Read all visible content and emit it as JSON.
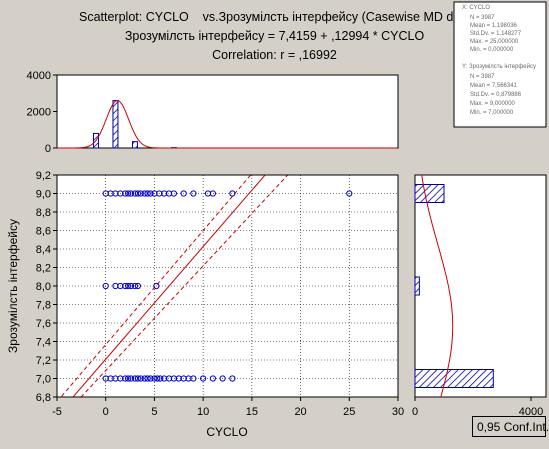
{
  "titles": {
    "line1": "Scatterplot: CYCLO    vs.Зрозумілсть інтерфейсу (Casewise MD dele",
    "line2": "Зрозумілсть інтерфейсу = 7,4159 + ,12994 * CYCLO",
    "line3": "Correlation: r = ,16992"
  },
  "footer": {
    "conf_label": "0,95 Conf.Int."
  },
  "stats": {
    "cyclo": {
      "name": "X: CYCLO",
      "lines": [
        "N = 3987",
        "Mean = 1,198036",
        "Std.Dv. = 1,148277",
        "Max. = 25,000000",
        "Min. = 0,000000"
      ]
    },
    "ui": {
      "name": "Y: Зрозумілсть інтерфейсу",
      "lines": [
        "N = 3987",
        "Mean = 7,566341",
        "Std.Dv. = 0,879886",
        "Max. = 9,000000",
        "Min. = 7,000000"
      ]
    }
  },
  "colors": {
    "points": "#0000cc",
    "fit": "#cc0000",
    "hatch": "#0000aa",
    "background": "#d4d0c8"
  },
  "chart_data": [
    {
      "type": "scatter",
      "xlabel": "CYCLO",
      "ylabel": "Зрозумілсть інтерфейсу",
      "xlim": [
        -5,
        30
      ],
      "ylim": [
        6.8,
        9.2
      ],
      "xticks": [
        -5,
        0,
        5,
        10,
        15,
        20,
        25,
        30
      ],
      "xtick_labels": [
        "-5",
        "0",
        "5",
        "10",
        "15",
        "20",
        "25",
        "30"
      ],
      "yticks": [
        6.8,
        7.0,
        7.2,
        7.4,
        7.6,
        7.8,
        8.0,
        8.2,
        8.4,
        8.6,
        8.8,
        9.0,
        9.2
      ],
      "ytick_labels": [
        "6,8",
        "7,0",
        "7,2",
        "7,4",
        "7,6",
        "7,8",
        "8,0",
        "8,2",
        "8,4",
        "8,6",
        "8,8",
        "9,0",
        "9,2"
      ],
      "grid": true,
      "regression": {
        "intercept": 7.4159,
        "slope": 0.12994,
        "r": 0.16992
      },
      "confidence_level": 0.95,
      "series": [
        {
          "y": 9.0,
          "x": [
            0,
            0.5,
            1,
            1.5,
            2,
            2.3,
            2.6,
            3,
            3.3,
            3.6,
            4,
            4.3,
            4.6,
            5,
            5.5,
            6,
            6.5,
            7,
            8,
            9,
            10.5,
            11,
            13,
            25
          ]
        },
        {
          "y": 8.0,
          "x": [
            0,
            1,
            1.5,
            2,
            2.3,
            2.6,
            3,
            3.3,
            5.2
          ]
        },
        {
          "y": 7.0,
          "x": [
            0,
            0.5,
            1,
            1.5,
            2,
            2.3,
            2.6,
            3,
            3.3,
            3.6,
            4,
            4.3,
            4.6,
            5,
            5.3,
            5.6,
            6,
            6.5,
            7,
            7.5,
            8,
            8.5,
            9,
            10,
            11,
            12,
            13
          ]
        }
      ]
    },
    {
      "type": "bar",
      "name": "CYCLO histogram",
      "xlim": [
        -5,
        30
      ],
      "ylim": [
        0,
        4000
      ],
      "yticks": [
        0,
        2000,
        4000
      ],
      "ytick_labels": [
        "0",
        "2000",
        "4000"
      ],
      "bars": [
        {
          "x": -1,
          "value": 800
        },
        {
          "x": 1,
          "value": 2600
        },
        {
          "x": 3,
          "value": 350
        },
        {
          "x": 7,
          "value": 20
        }
      ],
      "normal_curve": {
        "mean": 1.198036,
        "sd": 1.148277,
        "peak": 2600
      }
    },
    {
      "type": "bar",
      "name": "Зрозумілсть інтерфейсу histogram",
      "orientation": "horizontal",
      "ylim": [
        6.8,
        9.2
      ],
      "xlim": [
        0,
        4000
      ],
      "xticks": [
        0,
        4000
      ],
      "xtick_labels": [
        "0",
        "4000"
      ],
      "bars": [
        {
          "y": 9.0,
          "value": 1000
        },
        {
          "y": 8.0,
          "value": 150
        },
        {
          "y": 7.0,
          "value": 2700
        }
      ],
      "normal_curve": {
        "mean": 7.566341,
        "sd": 0.879886,
        "peak": 1300
      }
    }
  ]
}
